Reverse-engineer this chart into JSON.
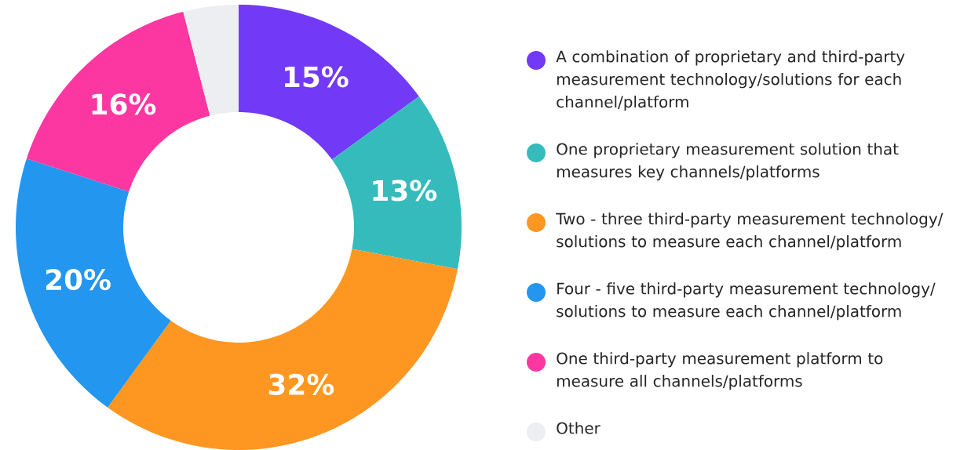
{
  "chart_data": {
    "type": "donut",
    "categories": [
      "A combination of proprietary and third-party measurement technology/solutions for each channel/platform",
      "One proprietary measurement solution that measures key channels/platforms",
      "Two - three third-party measurement technology/ solutions to measure each channel/platform",
      "Four - five third-party measurement technology/ solutions to measure each channel/platform",
      "One third-party measurement platform to measure all channels/platforms",
      "Other"
    ],
    "values": [
      15,
      13,
      32,
      20,
      16,
      4
    ],
    "value_labels": [
      "15%",
      "13%",
      "32%",
      "20%",
      "16%",
      null
    ],
    "colors": [
      "#7239f7",
      "#35bbbb",
      "#fe9721",
      "#2396ef",
      "#fc37a1",
      "#eceef1"
    ],
    "legend": "right"
  }
}
